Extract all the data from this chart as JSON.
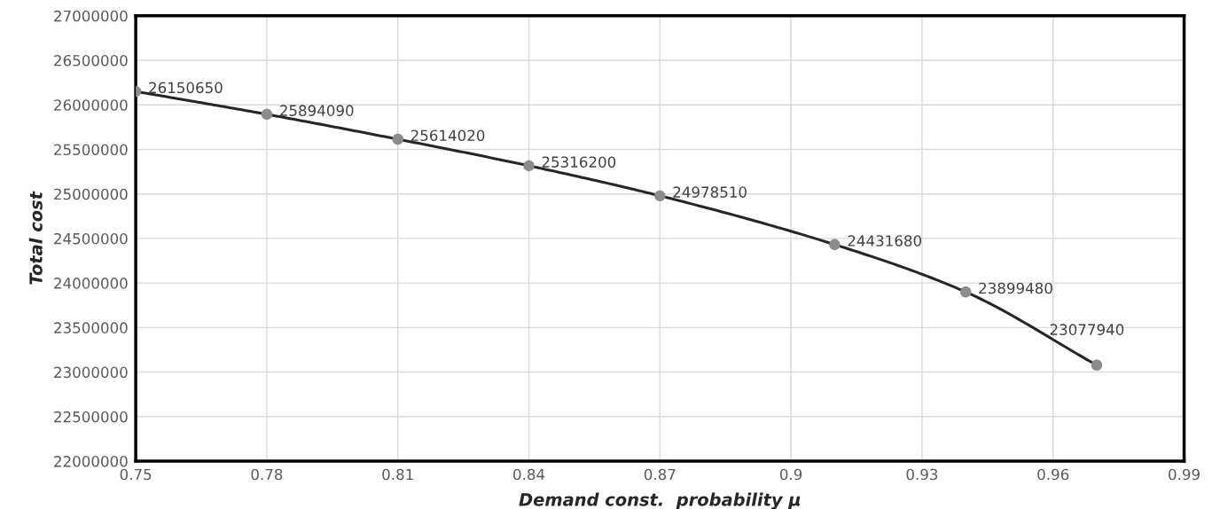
{
  "chart_data": {
    "type": "line",
    "xlabel": "Demand const.  probability μ",
    "ylabel": "Total cost",
    "x": [
      0.75,
      0.78,
      0.81,
      0.84,
      0.87,
      0.91,
      0.94,
      0.97
    ],
    "series": [
      {
        "color": "#262626",
        "colors": [
          "#8c8c8c",
          "#8c8c8c",
          "#8c8c8c",
          "#8c8c8c",
          "#8c8c8c",
          "#8c8c8c",
          "#8c8c8c",
          "#8c8c8c"
        ],
        "values": [
          26150650,
          25894090,
          25614020,
          25316200,
          24978510,
          24431680,
          23899480,
          23077940
        ]
      }
    ],
    "xlim": [
      0.75,
      0.99
    ],
    "xticks": [
      0.75,
      0.78,
      0.81,
      0.84,
      0.87,
      0.9,
      0.93,
      0.96,
      0.99
    ],
    "ylim": [
      22000000,
      27000000
    ],
    "yticks": [
      22000000,
      22500000,
      23000000,
      23500000,
      24000000,
      24500000,
      25000000,
      25500000,
      26000000,
      26500000,
      27000000
    ],
    "grid": true,
    "marker": "circle",
    "line_style": "solid",
    "data_labels": true
  }
}
